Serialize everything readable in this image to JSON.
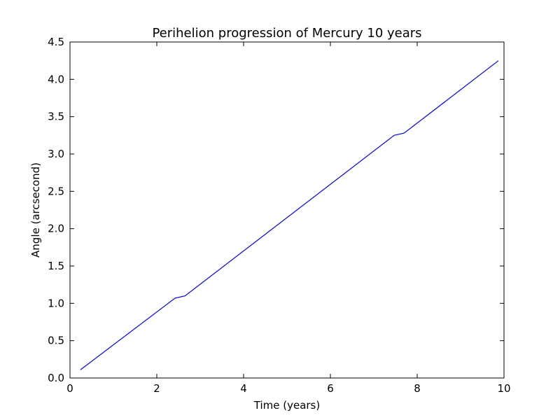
{
  "chart_data": {
    "type": "line",
    "title": "Perihelion progression of Mercury 10 years",
    "xlabel": "Time (years)",
    "ylabel": "Angle (arcsecond)",
    "xlim": [
      0,
      10
    ],
    "ylim": [
      0,
      4.5
    ],
    "xticks": [
      0,
      2,
      4,
      6,
      8,
      10
    ],
    "xtick_labels": [
      "0",
      "2",
      "4",
      "6",
      "8",
      "10"
    ],
    "yticks": [
      0,
      0.5,
      1,
      1.5,
      2,
      2.5,
      3,
      3.5,
      4,
      4.5
    ],
    "ytick_labels": [
      "0.0",
      "0.5",
      "1.0",
      "1.5",
      "2.0",
      "2.5",
      "3.0",
      "3.5",
      "4.0",
      "4.5"
    ],
    "grid": false,
    "line_color": "#0000ff",
    "series": [
      {
        "x": [
          0.24,
          2.42,
          2.65,
          7.47,
          7.7,
          9.87
        ],
        "y": [
          0.11,
          1.07,
          1.1,
          3.25,
          3.28,
          4.25
        ]
      }
    ]
  }
}
